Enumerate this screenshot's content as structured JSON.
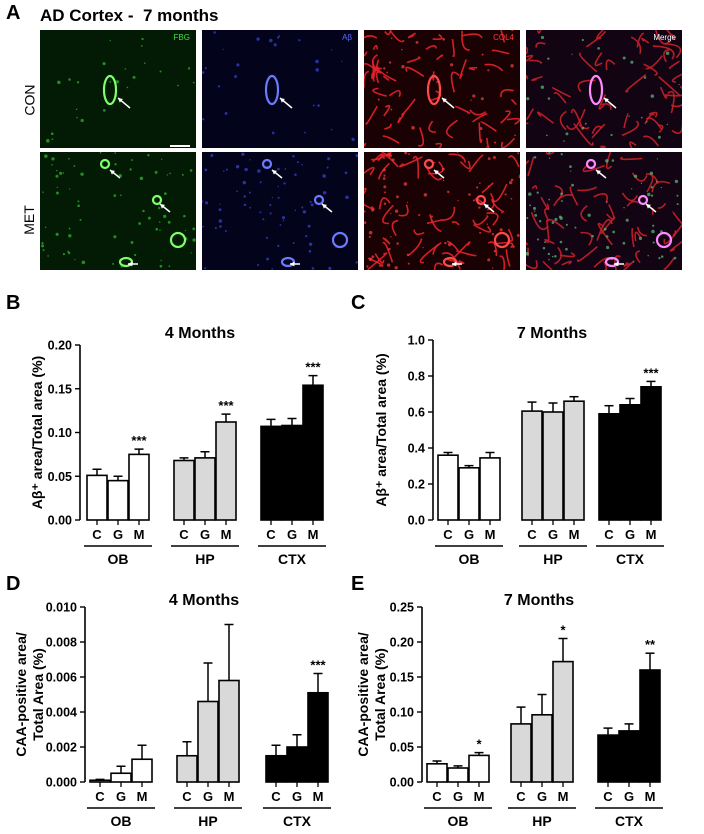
{
  "panelA": {
    "label": "A",
    "title": "AD Cortex -  7 months",
    "channels": [
      {
        "name": "FBG",
        "color": "#3fe03f"
      },
      {
        "name": "Aβ",
        "color": "#5a6cff"
      },
      {
        "name": "COL4",
        "color": "#ff3a3a"
      },
      {
        "name": "Merge",
        "color": "#ffffff"
      }
    ],
    "rows": [
      "CON",
      "MET"
    ]
  },
  "chart_data": [
    {
      "panel": "B",
      "type": "bar",
      "title": "4 Months",
      "ylabel": "Aβ⁺ area/Total area (%)",
      "ylim": [
        0,
        0.2
      ],
      "yticks": [
        "0.00",
        "0.05",
        "0.10",
        "0.15",
        "0.20"
      ],
      "groups": [
        "OB",
        "HP",
        "CTX"
      ],
      "categories": [
        "C",
        "G",
        "M"
      ],
      "values": [
        [
          0.051,
          0.045,
          0.075
        ],
        [
          0.068,
          0.071,
          0.112
        ],
        [
          0.107,
          0.108,
          0.154
        ]
      ],
      "errors": [
        [
          0.007,
          0.005,
          0.006
        ],
        [
          0.003,
          0.007,
          0.009
        ],
        [
          0.008,
          0.008,
          0.011
        ]
      ],
      "significance": [
        [
          "",
          "",
          "***"
        ],
        [
          "",
          "",
          "***"
        ],
        [
          "",
          "",
          "***"
        ]
      ],
      "fills": [
        "#ffffff",
        "#d9d9d9",
        "#000000"
      ]
    },
    {
      "panel": "C",
      "type": "bar",
      "title": "7 Months",
      "ylabel": "Aβ⁺ area/Total area (%)",
      "ylim": [
        0,
        1.0
      ],
      "yticks": [
        "0.0",
        "0.2",
        "0.4",
        "0.6",
        "0.8",
        "1.0"
      ],
      "groups": [
        "OB",
        "HP",
        "CTX"
      ],
      "categories": [
        "C",
        "G",
        "M"
      ],
      "values": [
        [
          0.36,
          0.29,
          0.345
        ],
        [
          0.605,
          0.6,
          0.66
        ],
        [
          0.59,
          0.64,
          0.74
        ]
      ],
      "errors": [
        [
          0.015,
          0.012,
          0.03
        ],
        [
          0.05,
          0.05,
          0.025
        ],
        [
          0.045,
          0.035,
          0.03
        ]
      ],
      "significance": [
        [
          "",
          "",
          ""
        ],
        [
          "",
          "",
          ""
        ],
        [
          "",
          "",
          "***"
        ]
      ],
      "fills": [
        "#ffffff",
        "#d9d9d9",
        "#000000"
      ]
    },
    {
      "panel": "D",
      "type": "bar",
      "title": "4 Months",
      "ylabel": "CAA-positive area/ Total Area (%)",
      "ylim": [
        0,
        0.01
      ],
      "yticks": [
        "0.000",
        "0.002",
        "0.004",
        "0.006",
        "0.008",
        "0.010"
      ],
      "groups": [
        "OB",
        "HP",
        "CTX"
      ],
      "categories": [
        "C",
        "G",
        "M"
      ],
      "values": [
        [
          0.0001,
          0.0005,
          0.0013
        ],
        [
          0.0015,
          0.0046,
          0.0058
        ],
        [
          0.0015,
          0.002,
          0.0051
        ]
      ],
      "errors": [
        [
          5e-05,
          0.0004,
          0.0008
        ],
        [
          0.0008,
          0.0022,
          0.0032
        ],
        [
          0.0006,
          0.0007,
          0.0011
        ]
      ],
      "significance": [
        [
          "",
          "",
          ""
        ],
        [
          "",
          "",
          ""
        ],
        [
          "",
          "",
          "***"
        ]
      ],
      "fills": [
        "#ffffff",
        "#d9d9d9",
        "#000000"
      ]
    },
    {
      "panel": "E",
      "type": "bar",
      "title": "7 Months",
      "ylabel": "CAA-positive area/ Total Area (%)",
      "ylim": [
        0,
        0.25
      ],
      "yticks": [
        "0.00",
        "0.05",
        "0.10",
        "0.15",
        "0.20",
        "0.25"
      ],
      "groups": [
        "OB",
        "HP",
        "CTX"
      ],
      "categories": [
        "C",
        "G",
        "M"
      ],
      "values": [
        [
          0.026,
          0.02,
          0.038
        ],
        [
          0.083,
          0.096,
          0.172
        ],
        [
          0.067,
          0.073,
          0.16
        ]
      ],
      "errors": [
        [
          0.004,
          0.003,
          0.004
        ],
        [
          0.024,
          0.029,
          0.033
        ],
        [
          0.01,
          0.01,
          0.024
        ]
      ],
      "significance": [
        [
          "",
          "",
          "*"
        ],
        [
          "",
          "",
          "*"
        ],
        [
          "",
          "",
          "**"
        ]
      ],
      "fills": [
        "#ffffff",
        "#d9d9d9",
        "#000000"
      ]
    }
  ]
}
